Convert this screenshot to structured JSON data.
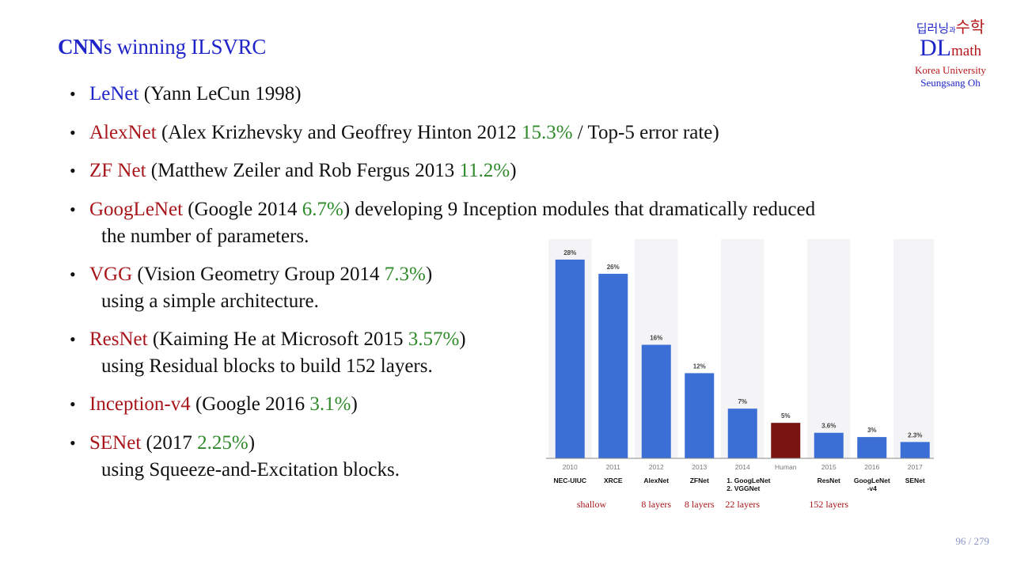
{
  "slide": {
    "title_bold": "CNN",
    "title_rest": "s winning ILSVRC",
    "page_label": "96 / 279"
  },
  "logo": {
    "korean_left": "딥러닝",
    "korean_mid": "과",
    "korean_right": "수학",
    "dl": "DL",
    "math": "math",
    "university": "Korea University",
    "author": "Seungsang Oh"
  },
  "bullets": [
    {
      "name": "LeNet",
      "rest": " (Yann LeCun  1998)",
      "pct": "",
      "after": "",
      "sub": ""
    },
    {
      "name": "AlexNet",
      "rest": " (Alex Krizhevsky and Geoffrey Hinton  2012  ",
      "pct": "15.3%",
      "after": " / Top-5 error rate)",
      "sub": ""
    },
    {
      "name": "ZF Net",
      "rest": " (Matthew Zeiler and Rob Fergus  2013  ",
      "pct": "11.2%",
      "after": ")",
      "sub": ""
    },
    {
      "name": "GoogLeNet",
      "rest": " (Google  2014  ",
      "pct": "6.7%",
      "after": ")  developing 9 Inception modules that dramatically reduced",
      "sub": "the number of parameters."
    },
    {
      "name": "VGG",
      "rest": " (Vision Geometry Group  2014  ",
      "pct": "7.3%",
      "after": ")",
      "sub": "using a simple architecture."
    },
    {
      "name": "ResNet",
      "rest": " (Kaiming He at Microsoft  2015  ",
      "pct": "3.57%",
      "after": ")",
      "sub": "using Residual blocks to build 152 layers."
    },
    {
      "name": "Inception-v4",
      "rest": " (Google  2016  ",
      "pct": "3.1%",
      "after": ")",
      "sub": ""
    },
    {
      "name": "SENet",
      "rest": " (2017  ",
      "pct": "2.25%",
      "after": ")",
      "sub": "using Squeeze-and-Excitation blocks."
    }
  ],
  "chart_data": {
    "type": "bar",
    "categories": [
      "2010",
      "2011",
      "2012",
      "2013",
      "2014",
      "Human",
      "2015",
      "2016",
      "2017"
    ],
    "values": [
      28,
      26,
      16,
      12,
      7,
      5,
      3.6,
      3,
      2.3
    ],
    "value_labels": [
      "28%",
      "26%",
      "16%",
      "12%",
      "7%",
      "5%",
      "3.6%",
      "3%",
      "2.3%"
    ],
    "model_labels": [
      [
        "NEC-UIUC"
      ],
      [
        "XRCE"
      ],
      [
        "AlexNet"
      ],
      [
        "ZFNet"
      ],
      [
        "1. GoogLeNet",
        "2. VGGNet"
      ],
      [
        ""
      ],
      [
        "ResNet"
      ],
      [
        "GoogLeNet",
        "-v4"
      ],
      [
        "SENet"
      ]
    ],
    "depth_labels": [
      {
        "text": "shallow",
        "from": 0,
        "to": 1
      },
      {
        "text": "8 layers",
        "from": 2,
        "to": 2
      },
      {
        "text": "8 layers",
        "from": 3,
        "to": 3
      },
      {
        "text": "22 layers",
        "from": 4,
        "to": 4
      },
      {
        "text": "152 layers",
        "from": 6,
        "to": 6
      }
    ],
    "ylim": [
      0,
      30
    ],
    "bar_color": "#3b6fd6",
    "highlight_color": "#7a1413",
    "highlight_index": 5,
    "grid": false
  }
}
